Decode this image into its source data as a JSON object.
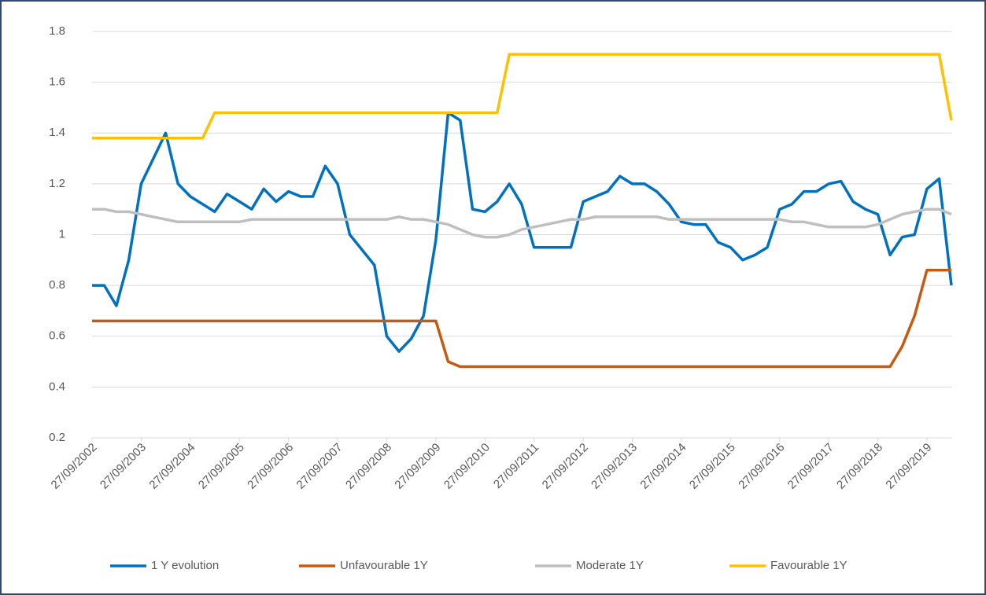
{
  "chart_data": {
    "type": "line",
    "x": [
      "2002-09-27",
      "2002-12-27",
      "2003-03-27",
      "2003-06-27",
      "2003-09-27",
      "2003-12-27",
      "2004-03-27",
      "2004-06-27",
      "2004-09-27",
      "2004-12-27",
      "2005-03-27",
      "2005-06-27",
      "2005-09-27",
      "2005-12-27",
      "2006-03-27",
      "2006-06-27",
      "2006-09-27",
      "2006-12-27",
      "2007-03-27",
      "2007-06-27",
      "2007-09-27",
      "2007-12-27",
      "2008-03-27",
      "2008-06-27",
      "2008-09-27",
      "2008-12-27",
      "2009-03-27",
      "2009-06-27",
      "2009-09-27",
      "2009-12-27",
      "2010-03-27",
      "2010-06-27",
      "2010-09-27",
      "2010-12-27",
      "2011-03-27",
      "2011-06-27",
      "2011-09-27",
      "2011-12-27",
      "2012-03-27",
      "2012-06-27",
      "2012-09-27",
      "2012-12-27",
      "2013-03-27",
      "2013-06-27",
      "2013-09-27",
      "2013-12-27",
      "2014-03-27",
      "2014-06-27",
      "2014-09-27",
      "2014-12-27",
      "2015-03-27",
      "2015-06-27",
      "2015-09-27",
      "2015-12-27",
      "2016-03-27",
      "2016-06-27",
      "2016-09-27",
      "2016-12-27",
      "2017-03-27",
      "2017-06-27",
      "2017-09-27",
      "2017-12-27",
      "2018-03-27",
      "2018-06-27",
      "2018-09-27",
      "2018-12-27",
      "2019-03-27",
      "2019-06-27",
      "2019-09-27",
      "2019-12-27",
      "2020-03-27"
    ],
    "series": [
      {
        "name": "1 Y evolution",
        "color": "#0070c0",
        "values": [
          0.8,
          0.8,
          0.72,
          0.9,
          1.2,
          1.3,
          1.4,
          1.2,
          1.15,
          1.12,
          1.09,
          1.16,
          1.13,
          1.1,
          1.18,
          1.13,
          1.17,
          1.15,
          1.15,
          1.27,
          1.2,
          1.0,
          0.94,
          0.88,
          0.6,
          0.54,
          0.59,
          0.68,
          0.98,
          1.48,
          1.45,
          1.1,
          1.09,
          1.13,
          1.2,
          1.12,
          0.95,
          0.95,
          0.95,
          0.95,
          1.13,
          1.15,
          1.17,
          1.23,
          1.2,
          1.2,
          1.17,
          1.12,
          1.05,
          1.04,
          1.04,
          0.97,
          0.95,
          0.9,
          0.92,
          0.95,
          1.1,
          1.12,
          1.17,
          1.17,
          1.2,
          1.21,
          1.13,
          1.1,
          1.08,
          0.92,
          0.99,
          1.0,
          1.18,
          1.22,
          0.8
        ]
      },
      {
        "name": "Unfavourable 1Y",
        "color": "#c55a11",
        "values": [
          0.66,
          0.66,
          0.66,
          0.66,
          0.66,
          0.66,
          0.66,
          0.66,
          0.66,
          0.66,
          0.66,
          0.66,
          0.66,
          0.66,
          0.66,
          0.66,
          0.66,
          0.66,
          0.66,
          0.66,
          0.66,
          0.66,
          0.66,
          0.66,
          0.66,
          0.66,
          0.66,
          0.66,
          0.66,
          0.5,
          0.48,
          0.48,
          0.48,
          0.48,
          0.48,
          0.48,
          0.48,
          0.48,
          0.48,
          0.48,
          0.48,
          0.48,
          0.48,
          0.48,
          0.48,
          0.48,
          0.48,
          0.48,
          0.48,
          0.48,
          0.48,
          0.48,
          0.48,
          0.48,
          0.48,
          0.48,
          0.48,
          0.48,
          0.48,
          0.48,
          0.48,
          0.48,
          0.48,
          0.48,
          0.48,
          0.48,
          0.56,
          0.68,
          0.86,
          0.86,
          0.86
        ]
      },
      {
        "name": "Moderate 1Y",
        "color": "#bfbfbf",
        "values": [
          1.1,
          1.1,
          1.09,
          1.09,
          1.08,
          1.07,
          1.06,
          1.05,
          1.05,
          1.05,
          1.05,
          1.05,
          1.05,
          1.06,
          1.06,
          1.06,
          1.06,
          1.06,
          1.06,
          1.06,
          1.06,
          1.06,
          1.06,
          1.06,
          1.06,
          1.07,
          1.06,
          1.06,
          1.05,
          1.04,
          1.02,
          1.0,
          0.99,
          0.99,
          1.0,
          1.02,
          1.03,
          1.04,
          1.05,
          1.06,
          1.06,
          1.07,
          1.07,
          1.07,
          1.07,
          1.07,
          1.07,
          1.06,
          1.06,
          1.06,
          1.06,
          1.06,
          1.06,
          1.06,
          1.06,
          1.06,
          1.06,
          1.05,
          1.05,
          1.04,
          1.03,
          1.03,
          1.03,
          1.03,
          1.04,
          1.06,
          1.08,
          1.09,
          1.1,
          1.1,
          1.08
        ]
      },
      {
        "name": "Favourable 1Y",
        "color": "#ffc000",
        "values": [
          1.38,
          1.38,
          1.38,
          1.38,
          1.38,
          1.38,
          1.38,
          1.38,
          1.38,
          1.38,
          1.48,
          1.48,
          1.48,
          1.48,
          1.48,
          1.48,
          1.48,
          1.48,
          1.48,
          1.48,
          1.48,
          1.48,
          1.48,
          1.48,
          1.48,
          1.48,
          1.48,
          1.48,
          1.48,
          1.48,
          1.48,
          1.48,
          1.48,
          1.48,
          1.71,
          1.71,
          1.71,
          1.71,
          1.71,
          1.71,
          1.71,
          1.71,
          1.71,
          1.71,
          1.71,
          1.71,
          1.71,
          1.71,
          1.71,
          1.71,
          1.71,
          1.71,
          1.71,
          1.71,
          1.71,
          1.71,
          1.71,
          1.71,
          1.71,
          1.71,
          1.71,
          1.71,
          1.71,
          1.71,
          1.71,
          1.71,
          1.71,
          1.71,
          1.71,
          1.71,
          1.45
        ]
      }
    ],
    "xlim": [
      "2002-09-27",
      "2020-03-27"
    ],
    "xticks": [
      {
        "value": "2002-09-27",
        "label": "27/09/2002"
      },
      {
        "value": "2003-09-27",
        "label": "27/09/2003"
      },
      {
        "value": "2004-09-27",
        "label": "27/09/2004"
      },
      {
        "value": "2005-09-27",
        "label": "27/09/2005"
      },
      {
        "value": "2006-09-27",
        "label": "27/09/2006"
      },
      {
        "value": "2007-09-27",
        "label": "27/09/2007"
      },
      {
        "value": "2008-09-27",
        "label": "27/09/2008"
      },
      {
        "value": "2009-09-27",
        "label": "27/09/2009"
      },
      {
        "value": "2010-09-27",
        "label": "27/09/2010"
      },
      {
        "value": "2011-09-27",
        "label": "27/09/2011"
      },
      {
        "value": "2012-09-27",
        "label": "27/09/2012"
      },
      {
        "value": "2013-09-27",
        "label": "27/09/2013"
      },
      {
        "value": "2014-09-27",
        "label": "27/09/2014"
      },
      {
        "value": "2015-09-27",
        "label": "27/09/2015"
      },
      {
        "value": "2016-09-27",
        "label": "27/09/2016"
      },
      {
        "value": "2017-09-27",
        "label": "27/09/2017"
      },
      {
        "value": "2018-09-27",
        "label": "27/09/2018"
      },
      {
        "value": "2019-09-27",
        "label": "27/09/2019"
      }
    ],
    "ylim": [
      0.2,
      1.8
    ],
    "yticks": [
      0.2,
      0.4,
      0.6,
      0.8,
      1,
      1.2,
      1.4,
      1.6,
      1.8
    ],
    "grid": true,
    "legend": "bottom"
  }
}
